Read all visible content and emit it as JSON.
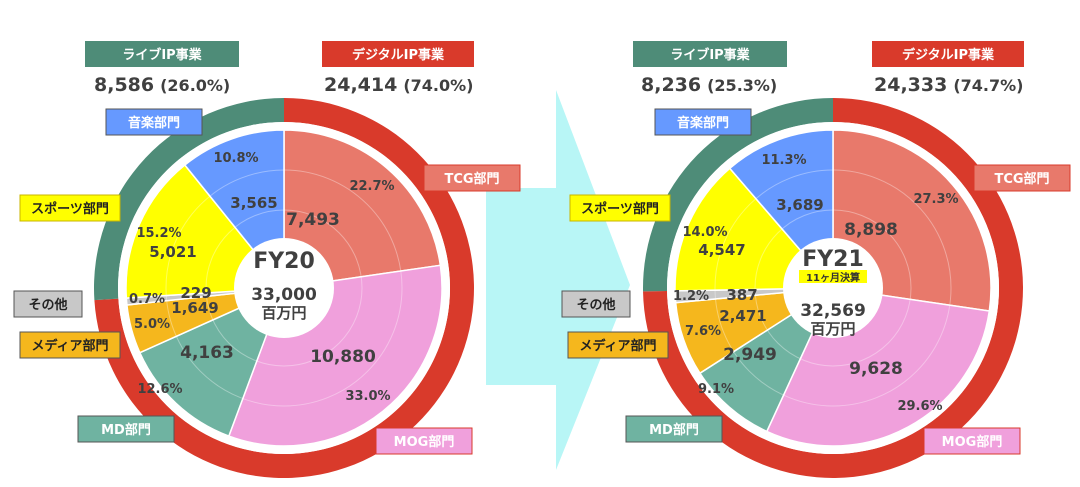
{
  "colors": {
    "live": "#4E8C78",
    "digital": "#D93A2B",
    "music": "#6699FF",
    "sports": "#FFFF00",
    "other": "#C8C8C8",
    "media": "#F5B71D",
    "md": "#6FB3A1",
    "mog": "#F0A0DC",
    "tcg": "#E8796B",
    "arrow": "#B8F6F6",
    "text": "#404040"
  },
  "chart_data": [
    {
      "type": "pie",
      "title": "FY20",
      "total_value": "33,000",
      "total_unit": "百万円",
      "note": "",
      "outer_ring": [
        {
          "name": "ライブIP事業",
          "value": 8586,
          "value_label": "8,586",
          "pct_label": "(26.0%)",
          "color": "live"
        },
        {
          "name": "デジタルIP事業",
          "value": 24414,
          "value_label": "24,414",
          "pct_label": "(74.0%)",
          "color": "digital"
        }
      ],
      "segments": [
        {
          "name": "TCG部門",
          "value": 7493,
          "value_label": "7,493",
          "pct_label": "22.7%",
          "color": "tcg"
        },
        {
          "name": "MOG部門",
          "value": 10880,
          "value_label": "10,880",
          "pct_label": "33.0%",
          "color": "mog"
        },
        {
          "name": "MD部門",
          "value": 4163,
          "value_label": "4,163",
          "pct_label": "12.6%",
          "color": "md"
        },
        {
          "name": "メディア部門",
          "value": 1649,
          "value_label": "1,649",
          "pct_label": "5.0%",
          "color": "media"
        },
        {
          "name": "その他",
          "value": 229,
          "value_label": "229",
          "pct_label": "0.7%",
          "color": "other"
        },
        {
          "name": "スポーツ部門",
          "value": 5021,
          "value_label": "5,021",
          "pct_label": "15.2%",
          "color": "sports"
        },
        {
          "name": "音楽部門",
          "value": 3565,
          "value_label": "3,565",
          "pct_label": "10.8%",
          "color": "music"
        }
      ]
    },
    {
      "type": "pie",
      "title": "FY21",
      "total_value": "32,569",
      "total_unit": "百万円",
      "note": "11ヶ月決算",
      "outer_ring": [
        {
          "name": "ライブIP事業",
          "value": 8236,
          "value_label": "8,236",
          "pct_label": "(25.3%)",
          "color": "live"
        },
        {
          "name": "デジタルIP事業",
          "value": 24333,
          "value_label": "24,333",
          "pct_label": "(74.7%)",
          "color": "digital"
        }
      ],
      "segments": [
        {
          "name": "TCG部門",
          "value": 8898,
          "value_label": "8,898",
          "pct_label": "27.3%",
          "color": "tcg"
        },
        {
          "name": "MOG部門",
          "value": 9628,
          "value_label": "9,628",
          "pct_label": "29.6%",
          "color": "mog"
        },
        {
          "name": "MD部門",
          "value": 2949,
          "value_label": "2,949",
          "pct_label": "9.1%",
          "color": "md"
        },
        {
          "name": "メディア部門",
          "value": 2471,
          "value_label": "2,471",
          "pct_label": "7.6%",
          "color": "media"
        },
        {
          "name": "その他",
          "value": 387,
          "value_label": "387",
          "pct_label": "1.2%",
          "color": "other"
        },
        {
          "name": "スポーツ部門",
          "value": 4547,
          "value_label": "4,547",
          "pct_label": "14.0%",
          "color": "sports"
        },
        {
          "name": "音楽部門",
          "value": 3689,
          "value_label": "3,689",
          "pct_label": "11.3%",
          "color": "music"
        }
      ]
    }
  ]
}
